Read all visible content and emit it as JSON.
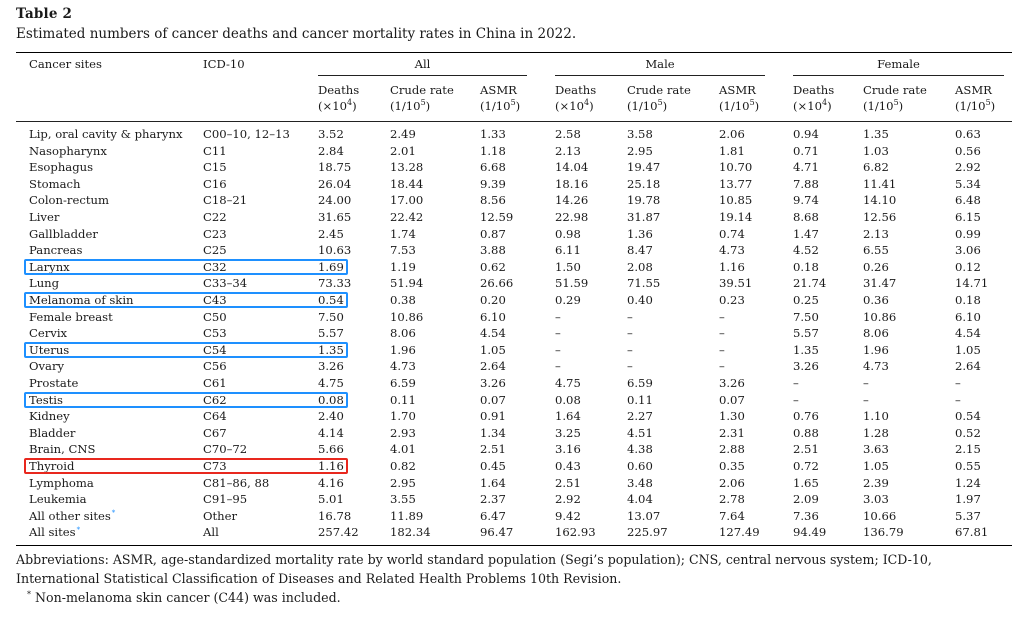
{
  "table": {
    "label": "Table 2",
    "caption": "Estimated numbers of cancer deaths and cancer mortality rates in China in 2022.",
    "header": {
      "sites": "Cancer sites",
      "icd": "ICD-10",
      "groups": [
        "All",
        "Male",
        "Female"
      ],
      "deaths": "Deaths",
      "deaths_unit": "(×10",
      "deaths_exp": "4",
      "crude": "Crude rate",
      "crude_unit": "(1/10",
      "crude_exp": "5",
      "asmr": "ASMR",
      "asmr_unit": "(1/10",
      "asmr_exp": "5",
      "unit_close": ")"
    },
    "rows": [
      {
        "site": "Lip, oral cavity & pharynx",
        "icd": "C00–10, 12–13",
        "v": [
          "3.52",
          "2.49",
          "1.33",
          "2.58",
          "3.58",
          "2.06",
          "0.94",
          "1.35",
          "0.63"
        ]
      },
      {
        "site": "Nasopharynx",
        "icd": "C11",
        "v": [
          "2.84",
          "2.01",
          "1.18",
          "2.13",
          "2.95",
          "1.81",
          "0.71",
          "1.03",
          "0.56"
        ]
      },
      {
        "site": "Esophagus",
        "icd": "C15",
        "v": [
          "18.75",
          "13.28",
          "6.68",
          "14.04",
          "19.47",
          "10.70",
          "4.71",
          "6.82",
          "2.92"
        ]
      },
      {
        "site": "Stomach",
        "icd": "C16",
        "v": [
          "26.04",
          "18.44",
          "9.39",
          "18.16",
          "25.18",
          "13.77",
          "7.88",
          "11.41",
          "5.34"
        ]
      },
      {
        "site": "Colon-rectum",
        "icd": "C18–21",
        "v": [
          "24.00",
          "17.00",
          "8.56",
          "14.26",
          "19.78",
          "10.85",
          "9.74",
          "14.10",
          "6.48"
        ]
      },
      {
        "site": "Liver",
        "icd": "C22",
        "v": [
          "31.65",
          "22.42",
          "12.59",
          "22.98",
          "31.87",
          "19.14",
          "8.68",
          "12.56",
          "6.15"
        ]
      },
      {
        "site": "Gallbladder",
        "icd": "C23",
        "v": [
          "2.45",
          "1.74",
          "0.87",
          "0.98",
          "1.36",
          "0.74",
          "1.47",
          "2.13",
          "0.99"
        ]
      },
      {
        "site": "Pancreas",
        "icd": "C25",
        "v": [
          "10.63",
          "7.53",
          "3.88",
          "6.11",
          "8.47",
          "4.73",
          "4.52",
          "6.55",
          "3.06"
        ]
      },
      {
        "site": "Larynx",
        "icd": "C32",
        "v": [
          "1.69",
          "1.19",
          "0.62",
          "1.50",
          "2.08",
          "1.16",
          "0.18",
          "0.26",
          "0.12"
        ],
        "hl": "blue"
      },
      {
        "site": "Lung",
        "icd": "C33–34",
        "v": [
          "73.33",
          "51.94",
          "26.66",
          "51.59",
          "71.55",
          "39.51",
          "21.74",
          "31.47",
          "14.71"
        ]
      },
      {
        "site": "Melanoma of skin",
        "icd": "C43",
        "v": [
          "0.54",
          "0.38",
          "0.20",
          "0.29",
          "0.40",
          "0.23",
          "0.25",
          "0.36",
          "0.18"
        ],
        "hl": "blue"
      },
      {
        "site": "Female breast",
        "icd": "C50",
        "v": [
          "7.50",
          "10.86",
          "6.10",
          "–",
          "–",
          "–",
          "7.50",
          "10.86",
          "6.10"
        ]
      },
      {
        "site": "Cervix",
        "icd": "C53",
        "v": [
          "5.57",
          "8.06",
          "4.54",
          "–",
          "–",
          "–",
          "5.57",
          "8.06",
          "4.54"
        ]
      },
      {
        "site": "Uterus",
        "icd": "C54",
        "v": [
          "1.35",
          "1.96",
          "1.05",
          "–",
          "–",
          "–",
          "1.35",
          "1.96",
          "1.05"
        ],
        "hl": "blue"
      },
      {
        "site": "Ovary",
        "icd": "C56",
        "v": [
          "3.26",
          "4.73",
          "2.64",
          "–",
          "–",
          "–",
          "3.26",
          "4.73",
          "2.64"
        ]
      },
      {
        "site": "Prostate",
        "icd": "C61",
        "v": [
          "4.75",
          "6.59",
          "3.26",
          "4.75",
          "6.59",
          "3.26",
          "–",
          "–",
          "–"
        ]
      },
      {
        "site": "Testis",
        "icd": "C62",
        "v": [
          "0.08",
          "0.11",
          "0.07",
          "0.08",
          "0.11",
          "0.07",
          "–",
          "–",
          "–"
        ],
        "hl": "blue"
      },
      {
        "site": "Kidney",
        "icd": "C64",
        "v": [
          "2.40",
          "1.70",
          "0.91",
          "1.64",
          "2.27",
          "1.30",
          "0.76",
          "1.10",
          "0.54"
        ]
      },
      {
        "site": "Bladder",
        "icd": "C67",
        "v": [
          "4.14",
          "2.93",
          "1.34",
          "3.25",
          "4.51",
          "2.31",
          "0.88",
          "1.28",
          "0.52"
        ]
      },
      {
        "site": "Brain, CNS",
        "icd": "C70–72",
        "v": [
          "5.66",
          "4.01",
          "2.51",
          "3.16",
          "4.38",
          "2.88",
          "2.51",
          "3.63",
          "2.15"
        ]
      },
      {
        "site": "Thyroid",
        "icd": "C73",
        "v": [
          "1.16",
          "0.82",
          "0.45",
          "0.43",
          "0.60",
          "0.35",
          "0.72",
          "1.05",
          "0.55"
        ],
        "hl": "red"
      },
      {
        "site": "Lymphoma",
        "icd": "C81–86, 88",
        "v": [
          "4.16",
          "2.95",
          "1.64",
          "2.51",
          "3.48",
          "2.06",
          "1.65",
          "2.39",
          "1.24"
        ]
      },
      {
        "site": "Leukemia",
        "icd": "C91–95",
        "v": [
          "5.01",
          "3.55",
          "2.37",
          "2.92",
          "4.04",
          "2.78",
          "2.09",
          "3.03",
          "1.97"
        ]
      },
      {
        "site": "All other sites",
        "icd": "Other",
        "v": [
          "16.78",
          "11.89",
          "6.47",
          "9.42",
          "13.07",
          "7.64",
          "7.36",
          "10.66",
          "5.37"
        ],
        "mark": "*"
      },
      {
        "site": "All sites",
        "icd": "All",
        "v": [
          "257.42",
          "182.34",
          "96.47",
          "162.93",
          "225.97",
          "127.49",
          "94.49",
          "136.79",
          "67.81"
        ],
        "mark": "*"
      }
    ],
    "footnote": {
      "abbreviations": "Abbreviations: ASMR, age-standardized mortality rate by world standard population (Segi’s population); CNS, central nervous system; ICD-10, International Statistical Classification of Diseases and Related Health Problems 10th Revision.",
      "marker": "*",
      "note": "Non-melanoma skin cancer (C44) was included."
    },
    "highlight_colors": {
      "blue": "#1e90ff",
      "red": "#e8281e"
    }
  }
}
